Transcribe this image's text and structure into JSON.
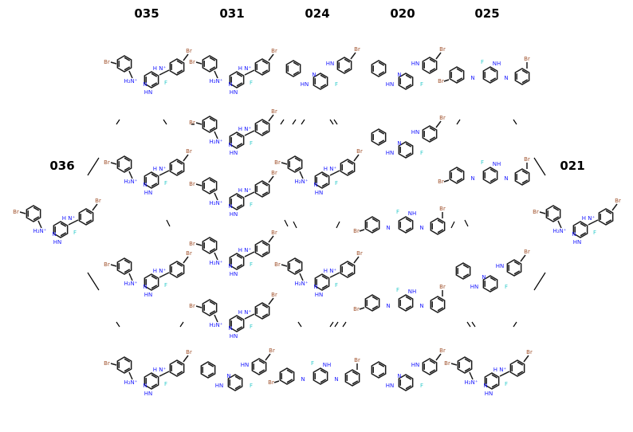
{
  "columns": [
    "035",
    "031",
    "024",
    "020",
    "025"
  ],
  "side_labels": {
    "left": "036",
    "right": "021"
  },
  "atoms": {
    "bromine": "Br",
    "fluorine": "F",
    "amine": "HN",
    "amine_plus": "H N⁺",
    "nitrogen": "N",
    "imine": "NH",
    "ammonium": "H₂N⁺"
  },
  "colors": {
    "bond": "#1a1a1a",
    "nitrogen": "#1a1aff",
    "fluorine": "#33cccc",
    "bromine": "#a0522d",
    "label": "#000000"
  }
}
